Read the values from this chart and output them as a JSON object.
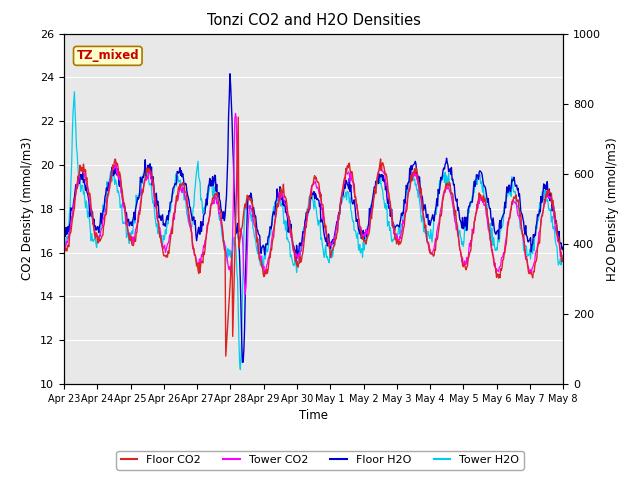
{
  "title": "Tonzi CO2 and H2O Densities",
  "xlabel": "Time",
  "ylabel_left": "CO2 Density (mmol/m3)",
  "ylabel_right": "H2O Density (mmol/m3)",
  "ylim_left": [
    10,
    26
  ],
  "ylim_right": [
    0,
    1000
  ],
  "annotation_text": "TZ_mixed",
  "annotation_color": "#cc0000",
  "annotation_bg": "#ffffcc",
  "annotation_edge": "#aa7700",
  "xtick_labels": [
    "Apr 23",
    "Apr 24",
    "Apr 25",
    "Apr 26",
    "Apr 27",
    "Apr 28",
    "Apr 29",
    "Apr 30",
    "May 1",
    "May 2",
    "May 3",
    "May 4",
    "May 5",
    "May 6",
    "May 7",
    "May 8"
  ],
  "legend_entries": [
    "Floor CO2",
    "Tower CO2",
    "Floor H2O",
    "Tower H2O"
  ],
  "colors": {
    "floor_co2": "#dd2222",
    "tower_co2": "#ff00ff",
    "floor_h2o": "#0000cc",
    "tower_h2o": "#00ccee"
  },
  "bg_color": "#e8e8e8",
  "grid_color": "#ffffff",
  "n_points": 720
}
